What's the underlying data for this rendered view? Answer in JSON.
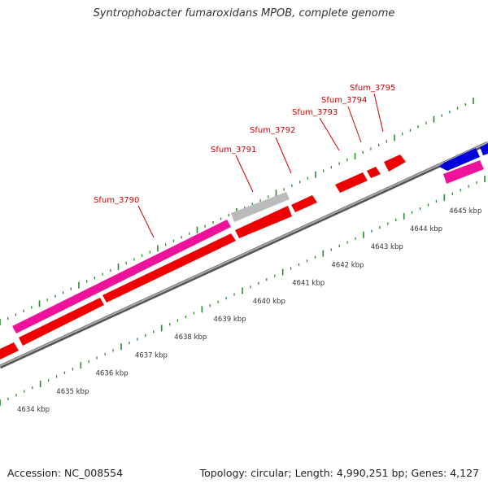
{
  "title": "Syntrophobacter fumaroxidans MPOB, complete genome",
  "footer": {
    "accession": "Accession: NC_008554",
    "summary": "Topology: circular; Length: 4,990,251 bp; Genes: 4,127"
  },
  "colors": {
    "cds": "#ee0000",
    "pseudo": "#bbbbbb",
    "rna": "#ee1199",
    "blue": "#0000dd",
    "label": "#cc0000",
    "tick": "#2a8a2a",
    "axis": "#888888"
  },
  "kbp_labels": [
    "4634 kbp",
    "4635 kbp",
    "4636 kbp",
    "4637 kbp",
    "4638 kbp",
    "4639 kbp",
    "4640 kbp",
    "4641 kbp",
    "4642 kbp",
    "4643 kbp",
    "4644 kbp",
    "4645 kbp"
  ],
  "gene_labels": [
    "Sfum_3790",
    "Sfum_3791",
    "Sfum_3792",
    "Sfum_3793",
    "Sfum_3794",
    "Sfum_3795"
  ]
}
